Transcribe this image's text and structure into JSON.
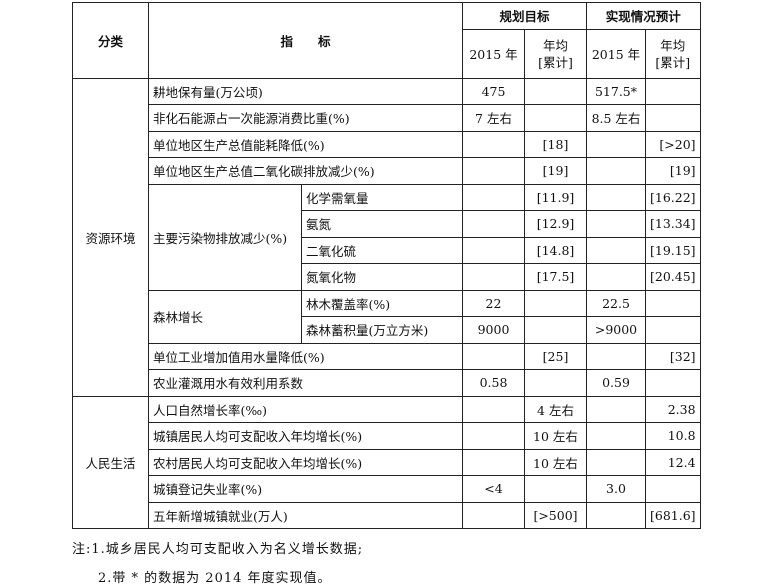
{
  "header": {
    "category": "分类",
    "indicator": "指　　标",
    "plan": "规划目标",
    "actual": "实现情况预计",
    "year2015": "2015 年",
    "avg_line1": "年均",
    "avg_line2": "[累计]"
  },
  "categories": {
    "env": "资源环境",
    "life": "人民生活"
  },
  "groups": {
    "pollutants": "主要污染物排放减少(%)",
    "forest": "森林增长"
  },
  "rows": [
    {
      "indicator": "耕地保有量(万公顷)",
      "plan_2015": "475",
      "plan_avg": "",
      "actual_2015": "517.5*",
      "actual_avg": ""
    },
    {
      "indicator": "非化石能源占一次能源消费比重(%)",
      "plan_2015": "7 左右",
      "plan_avg": "",
      "actual_2015": "8.5 左右",
      "actual_avg": ""
    },
    {
      "indicator": "单位地区生产总值能耗降低(%)",
      "plan_2015": "",
      "plan_avg": "[18]",
      "actual_2015": "",
      "actual_avg": "[>20]"
    },
    {
      "indicator": "单位地区生产总值二氧化碳排放减少(%)",
      "plan_2015": "",
      "plan_avg": "[19]",
      "actual_2015": "",
      "actual_avg": "[19]"
    },
    {
      "indicator": "化学需氧量",
      "plan_2015": "",
      "plan_avg": "[11.9]",
      "actual_2015": "",
      "actual_avg": "[16.22]"
    },
    {
      "indicator": "氨氮",
      "plan_2015": "",
      "plan_avg": "[12.9]",
      "actual_2015": "",
      "actual_avg": "[13.34]"
    },
    {
      "indicator": "二氧化硫",
      "plan_2015": "",
      "plan_avg": "[14.8]",
      "actual_2015": "",
      "actual_avg": "[19.15]"
    },
    {
      "indicator": "氮氧化物",
      "plan_2015": "",
      "plan_avg": "[17.5]",
      "actual_2015": "",
      "actual_avg": "[20.45]"
    },
    {
      "indicator": "林木覆盖率(%)",
      "plan_2015": "22",
      "plan_avg": "",
      "actual_2015": "22.5",
      "actual_avg": ""
    },
    {
      "indicator": "森林蓄积量(万立方米)",
      "plan_2015": "9000",
      "plan_avg": "",
      "actual_2015": ">9000",
      "actual_avg": ""
    },
    {
      "indicator": "单位工业增加值用水量降低(%)",
      "plan_2015": "",
      "plan_avg": "[25]",
      "actual_2015": "",
      "actual_avg": "[32]"
    },
    {
      "indicator": "农业灌溉用水有效利用系数",
      "plan_2015": "0.58",
      "plan_avg": "",
      "actual_2015": "0.59",
      "actual_avg": ""
    },
    {
      "indicator": "人口自然增长率(‰)",
      "plan_2015": "",
      "plan_avg": "4 左右",
      "actual_2015": "",
      "actual_avg": "2.38"
    },
    {
      "indicator": "城镇居民人均可支配收入年均增长(%)",
      "plan_2015": "",
      "plan_avg": "10 左右",
      "actual_2015": "",
      "actual_avg": "10.8"
    },
    {
      "indicator": "农村居民人均可支配收入年均增长(%)",
      "plan_2015": "",
      "plan_avg": "10 左右",
      "actual_2015": "",
      "actual_avg": "12.4"
    },
    {
      "indicator": "城镇登记失业率(%)",
      "plan_2015": "<4",
      "plan_avg": "",
      "actual_2015": "3.0",
      "actual_avg": ""
    },
    {
      "indicator": "五年新增城镇就业(万人)",
      "plan_2015": "",
      "plan_avg": "[>500]",
      "actual_2015": "",
      "actual_avg": "[681.6]"
    }
  ],
  "notes": [
    "注:1.城乡居民人均可支配收入为名义增长数据;",
    "2.带 * 的数据为 2014 年度实现值。"
  ]
}
